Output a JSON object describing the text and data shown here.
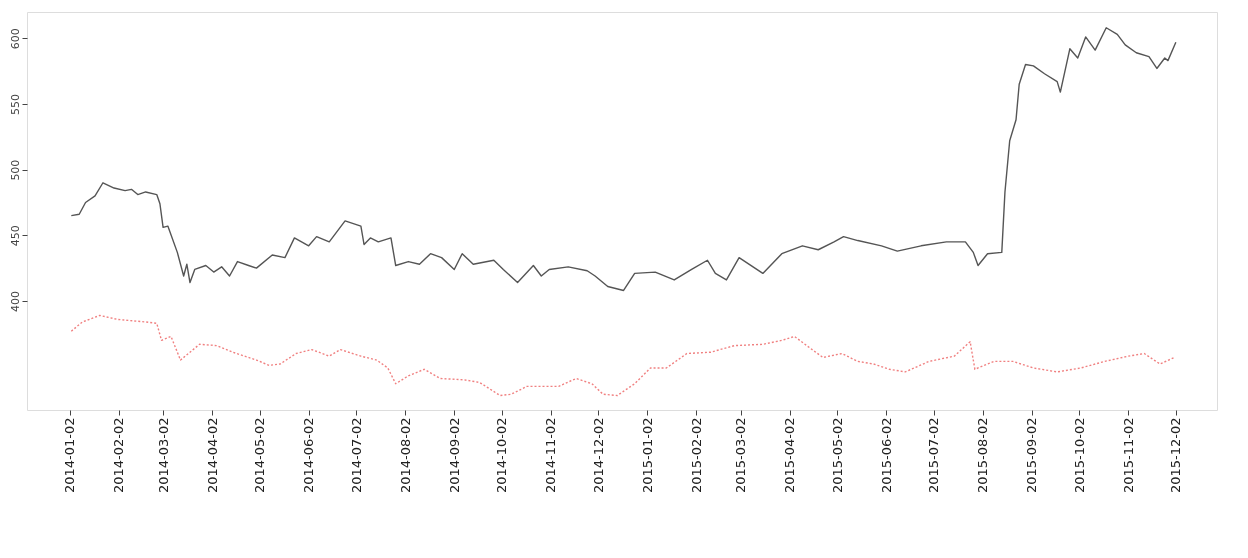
{
  "chart_data": {
    "type": "line",
    "grid": false,
    "xlim": [
      "2013-12-06",
      "2015-12-28"
    ],
    "ylim": [
      317,
      620
    ],
    "xticks": [
      {
        "value": "2014-01-02",
        "label": "2014-01-02"
      },
      {
        "value": "2014-02-02",
        "label": "2014-02-02"
      },
      {
        "value": "2014-03-02",
        "label": "2014-03-02"
      },
      {
        "value": "2014-04-02",
        "label": "2014-04-02"
      },
      {
        "value": "2014-05-02",
        "label": "2014-05-02"
      },
      {
        "value": "2014-06-02",
        "label": "2014-06-02"
      },
      {
        "value": "2014-07-02",
        "label": "2014-07-02"
      },
      {
        "value": "2014-08-02",
        "label": "2014-08-02"
      },
      {
        "value": "2014-09-02",
        "label": "2014-09-02"
      },
      {
        "value": "2014-10-02",
        "label": "2014-10-02"
      },
      {
        "value": "2014-11-02",
        "label": "2014-11-02"
      },
      {
        "value": "2014-12-02",
        "label": "2014-12-02"
      },
      {
        "value": "2015-01-02",
        "label": "2015-01-02"
      },
      {
        "value": "2015-02-02",
        "label": "2015-02-02"
      },
      {
        "value": "2015-03-02",
        "label": "2015-03-02"
      },
      {
        "value": "2015-04-02",
        "label": "2015-04-02"
      },
      {
        "value": "2015-05-02",
        "label": "2015-05-02"
      },
      {
        "value": "2015-06-02",
        "label": "2015-06-02"
      },
      {
        "value": "2015-07-02",
        "label": "2015-07-02"
      },
      {
        "value": "2015-08-02",
        "label": "2015-08-02"
      },
      {
        "value": "2015-09-02",
        "label": "2015-09-02"
      },
      {
        "value": "2015-10-02",
        "label": "2015-10-02"
      },
      {
        "value": "2015-11-02",
        "label": "2015-11-02"
      },
      {
        "value": "2015-12-02",
        "label": "2015-12-02"
      }
    ],
    "yticks": [
      400,
      450,
      500,
      550,
      600
    ],
    "series": [
      {
        "color": "#555555",
        "line_style": "solid",
        "x": [
          "2014-01-03",
          "2014-01-08",
          "2014-01-12",
          "2014-01-18",
          "2014-01-23",
          "2014-01-30",
          "2014-02-06",
          "2014-02-10",
          "2014-02-14",
          "2014-02-19",
          "2014-02-26",
          "2014-02-28",
          "2014-03-02",
          "2014-03-05",
          "2014-03-11",
          "2014-03-15",
          "2014-03-17",
          "2014-03-19",
          "2014-03-22",
          "2014-03-29",
          "2014-04-03",
          "2014-04-08",
          "2014-04-13",
          "2014-04-18",
          "2014-04-25",
          "2014-04-30",
          "2014-05-10",
          "2014-05-18",
          "2014-05-24",
          "2014-06-02",
          "2014-06-07",
          "2014-06-15",
          "2014-06-25",
          "2014-07-05",
          "2014-07-07",
          "2014-07-11",
          "2014-07-16",
          "2014-07-24",
          "2014-07-27",
          "2014-08-04",
          "2014-08-11",
          "2014-08-18",
          "2014-08-25",
          "2014-09-02",
          "2014-09-07",
          "2014-09-14",
          "2014-09-27",
          "2014-10-03",
          "2014-10-12",
          "2014-10-22",
          "2014-10-27",
          "2014-11-01",
          "2014-11-13",
          "2014-11-25",
          "2014-11-30",
          "2014-12-08",
          "2014-12-18",
          "2014-12-25",
          "2015-01-07",
          "2015-01-19",
          "2015-01-30",
          "2015-02-09",
          "2015-02-14",
          "2015-02-21",
          "2015-03-01",
          "2015-03-11",
          "2015-03-16",
          "2015-03-28",
          "2015-04-10",
          "2015-04-20",
          "2015-04-30",
          "2015-05-06",
          "2015-05-15",
          "2015-05-30",
          "2015-06-09",
          "2015-06-24",
          "2015-07-10",
          "2015-07-22",
          "2015-07-27",
          "2015-07-30",
          "2015-08-05",
          "2015-08-14",
          "2015-08-16",
          "2015-08-19",
          "2015-08-23",
          "2015-08-25",
          "2015-08-29",
          "2015-09-03",
          "2015-09-10",
          "2015-09-18",
          "2015-09-20",
          "2015-09-26",
          "2015-10-01",
          "2015-10-06",
          "2015-10-12",
          "2015-10-19",
          "2015-10-26",
          "2015-10-31",
          "2015-11-07",
          "2015-11-15",
          "2015-11-20",
          "2015-11-25",
          "2015-11-27",
          "2015-12-02"
        ],
        "values": [
          465,
          466,
          475,
          480,
          490,
          486,
          484,
          485,
          481,
          483,
          481,
          474,
          456,
          457,
          437,
          419,
          428,
          414,
          424,
          427,
          422,
          426,
          419,
          430,
          427,
          425,
          435,
          433,
          448,
          442,
          449,
          445,
          461,
          457,
          443,
          448,
          445,
          448,
          427,
          430,
          428,
          436,
          433,
          424,
          436,
          428,
          431,
          424,
          414,
          427,
          419,
          424,
          426,
          423,
          419,
          411,
          408,
          421,
          422,
          416,
          424,
          431,
          421,
          416,
          433,
          425,
          421,
          436,
          442,
          439,
          445,
          449,
          446,
          442,
          438,
          442,
          445,
          445,
          437,
          427,
          436,
          437,
          483,
          522,
          538,
          565,
          580,
          579,
          573,
          567,
          559,
          592,
          585,
          601,
          591,
          608,
          603,
          595,
          589,
          586,
          577,
          585,
          583,
          597
        ]
      },
      {
        "color": "#f08080",
        "line_style": "dotted",
        "x": [
          "2014-01-03",
          "2014-01-10",
          "2014-01-21",
          "2014-02-01",
          "2014-02-19",
          "2014-02-26",
          "2014-03-01",
          "2014-03-07",
          "2014-03-13",
          "2014-03-25",
          "2014-04-05",
          "2014-04-15",
          "2014-04-30",
          "2014-05-08",
          "2014-05-15",
          "2014-05-25",
          "2014-06-04",
          "2014-06-15",
          "2014-06-22",
          "2014-07-05",
          "2014-07-15",
          "2014-07-22",
          "2014-07-27",
          "2014-08-04",
          "2014-08-14",
          "2014-08-24",
          "2014-09-08",
          "2014-09-18",
          "2014-10-01",
          "2014-10-08",
          "2014-10-18",
          "2014-10-28",
          "2014-11-07",
          "2014-11-18",
          "2014-11-28",
          "2014-12-05",
          "2014-12-14",
          "2014-12-25",
          "2015-01-04",
          "2015-01-14",
          "2015-01-27",
          "2015-02-11",
          "2015-02-26",
          "2015-03-16",
          "2015-03-28",
          "2015-04-05",
          "2015-04-15",
          "2015-04-23",
          "2015-05-05",
          "2015-05-15",
          "2015-05-25",
          "2015-06-04",
          "2015-06-14",
          "2015-06-29",
          "2015-07-15",
          "2015-07-25",
          "2015-07-28",
          "2015-08-09",
          "2015-08-21",
          "2015-09-03",
          "2015-09-18",
          "2015-10-03",
          "2015-10-18",
          "2015-11-02",
          "2015-11-12",
          "2015-11-22",
          "2015-12-01"
        ],
        "values": [
          377,
          384,
          389,
          386,
          384,
          383,
          370,
          373,
          355,
          367,
          366,
          361,
          355,
          351,
          352,
          360,
          363,
          358,
          363,
          358,
          355,
          349,
          337,
          343,
          348,
          341,
          340,
          338,
          328,
          329,
          335,
          335,
          335,
          341,
          337,
          329,
          328,
          337,
          349,
          349,
          360,
          361,
          366,
          367,
          370,
          373,
          364,
          357,
          360,
          354,
          352,
          348,
          346,
          354,
          358,
          369,
          348,
          354,
          354,
          349,
          346,
          349,
          354,
          358,
          360,
          352,
          357
        ]
      }
    ]
  }
}
